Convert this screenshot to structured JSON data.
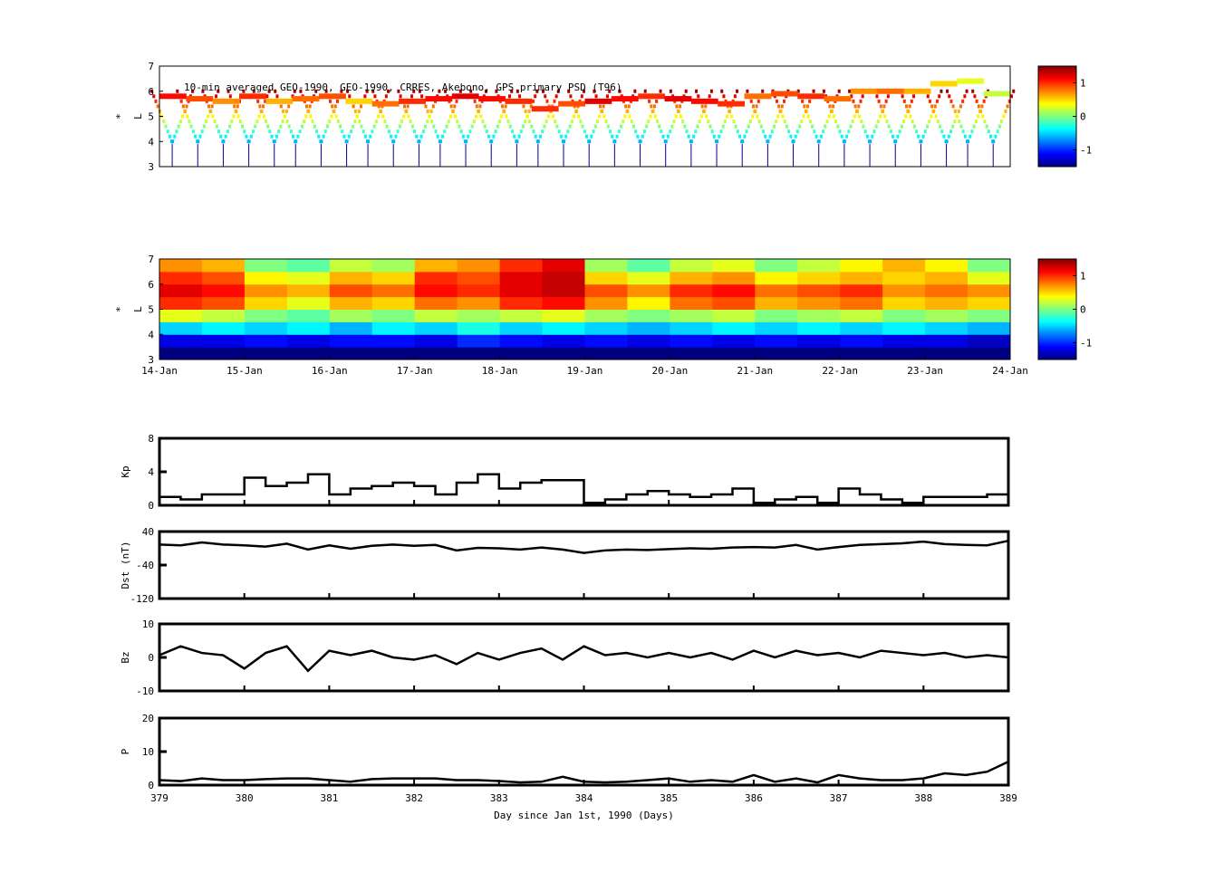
{
  "chart_data": [
    {
      "type": "scatter",
      "title": "10-min averaged GEO-1990, GEO-1990, CRRES, Akebono, GPS  primary PSD (T96)",
      "ylabel": "L*",
      "ylim": [
        3,
        7
      ],
      "yticks": [
        "3",
        "4",
        "5",
        "6",
        "7"
      ],
      "colorbar": {
        "range": [
          -1.5,
          1.5
        ],
        "ticks": [
          "1",
          "0",
          "-1"
        ]
      },
      "geo_L": [
        5.8,
        5.7,
        5.6,
        5.8,
        5.6,
        5.7,
        5.8,
        5.6,
        5.5,
        5.6,
        5.7,
        5.8,
        5.7,
        5.6,
        5.3,
        5.5,
        5.6,
        5.7,
        5.8,
        5.7,
        5.6,
        5.5,
        5.8,
        5.9,
        5.8,
        5.7,
        6.0,
        6.0,
        6.0,
        6.3,
        6.4,
        5.9
      ],
      "geo_value": [
        1.1,
        0.9,
        0.7,
        1.0,
        0.6,
        0.8,
        0.9,
        0.5,
        0.8,
        1.0,
        1.1,
        1.2,
        1.1,
        1.0,
        1.0,
        0.9,
        1.2,
        1.1,
        1.0,
        1.2,
        1.1,
        1.0,
        0.8,
        0.9,
        1.0,
        0.8,
        0.7,
        0.8,
        0.6,
        0.5,
        0.3,
        0.2
      ],
      "pass_days": [
        379.15,
        379.45,
        379.75,
        380.05,
        380.35,
        380.6,
        380.9,
        381.2,
        381.45,
        381.75,
        382.05,
        382.3,
        382.6,
        382.9,
        383.2,
        383.45,
        383.75,
        384.05,
        384.35,
        384.65,
        384.95,
        385.25,
        385.55,
        385.85,
        386.15,
        386.45,
        386.75,
        387.05,
        387.35,
        387.65,
        387.95,
        388.25,
        388.5,
        388.8
      ]
    },
    {
      "type": "heatmap",
      "ylabel": "L*",
      "ylim": [
        3,
        7
      ],
      "yticks": [
        "3",
        "4",
        "5",
        "6",
        "7"
      ],
      "xticks": [
        "14-Jan",
        "15-Jan",
        "16-Jan",
        "17-Jan",
        "18-Jan",
        "19-Jan",
        "20-Jan",
        "21-Jan",
        "22-Jan",
        "23-Jan",
        "24-Jan"
      ],
      "colorbar": {
        "range": [
          -1.5,
          1.5
        ],
        "ticks": [
          "1",
          "0",
          "-1"
        ]
      },
      "L_bins": [
        3.25,
        3.75,
        4.25,
        4.75,
        5.25,
        5.75,
        6.25,
        6.75
      ],
      "values": [
        [
          -1.6,
          -1.6,
          -1.6,
          -1.6,
          -1.6,
          -1.6,
          -1.6,
          -1.6,
          -1.6,
          -1.6,
          -1.6,
          -1.6,
          -1.6,
          -1.6,
          -1.6,
          -1.6,
          -1.6,
          -1.6,
          -1.6,
          -1.6
        ],
        [
          -1.2,
          -1.2,
          -1.1,
          -1.2,
          -1.1,
          -1.1,
          -1.2,
          -1.0,
          -1.1,
          -1.2,
          -1.1,
          -1.2,
          -1.1,
          -1.2,
          -1.1,
          -1.2,
          -1.1,
          -1.2,
          -1.2,
          -1.3
        ],
        [
          -0.5,
          -0.4,
          -0.5,
          -0.4,
          -0.6,
          -0.4,
          -0.5,
          -0.3,
          -0.5,
          -0.4,
          -0.5,
          -0.6,
          -0.5,
          -0.4,
          -0.5,
          -0.4,
          -0.5,
          -0.4,
          -0.5,
          -0.6
        ],
        [
          0.3,
          0.2,
          0.0,
          -0.1,
          0.1,
          0.0,
          0.2,
          0.1,
          0.2,
          0.3,
          0.1,
          0.0,
          0.1,
          0.2,
          0.0,
          0.1,
          0.2,
          0.0,
          0.1,
          0.0
        ],
        [
          1.0,
          0.9,
          0.5,
          0.3,
          0.6,
          0.5,
          0.8,
          0.7,
          1.0,
          1.1,
          0.7,
          0.4,
          0.8,
          0.9,
          0.6,
          0.7,
          0.8,
          0.5,
          0.6,
          0.5
        ],
        [
          1.2,
          1.1,
          0.7,
          0.6,
          0.9,
          0.8,
          1.1,
          1.0,
          1.2,
          1.3,
          0.9,
          0.7,
          1.0,
          1.1,
          0.8,
          0.9,
          1.0,
          0.7,
          0.8,
          0.7
        ],
        [
          1.0,
          0.9,
          0.4,
          0.3,
          0.6,
          0.5,
          1.0,
          0.9,
          1.2,
          1.3,
          0.5,
          0.3,
          0.6,
          0.7,
          0.4,
          0.5,
          0.6,
          0.5,
          0.6,
          0.3
        ],
        [
          0.7,
          0.6,
          0.0,
          -0.1,
          0.2,
          0.1,
          0.6,
          0.7,
          1.0,
          1.2,
          0.1,
          -0.1,
          0.2,
          0.3,
          0.0,
          0.2,
          0.4,
          0.6,
          0.4,
          0.0
        ]
      ]
    },
    {
      "type": "line",
      "ylabel": "Kp",
      "ylim": [
        0,
        8
      ],
      "yticks": [
        "0",
        "4",
        "8"
      ],
      "x": [
        379,
        379.25,
        379.5,
        379.75,
        380,
        380.25,
        380.5,
        380.75,
        381,
        381.25,
        381.5,
        381.75,
        382,
        382.25,
        382.5,
        382.75,
        383,
        383.25,
        383.5,
        383.75,
        384,
        384.25,
        384.5,
        384.75,
        385,
        385.25,
        385.5,
        385.75,
        386,
        386.25,
        386.5,
        386.75,
        387,
        387.25,
        387.5,
        387.75,
        388,
        388.25,
        388.5,
        388.75,
        389
      ],
      "values": [
        1,
        0.7,
        1.3,
        1.3,
        3.3,
        2.3,
        2.7,
        3.7,
        1.3,
        2,
        2.3,
        2.7,
        2.3,
        1.3,
        2.7,
        3.7,
        2,
        2.7,
        3,
        3,
        0.3,
        0.7,
        1.3,
        1.7,
        1.3,
        1,
        1.3,
        2,
        0.3,
        0.7,
        1,
        0.3,
        2,
        1.3,
        0.7,
        0.3,
        1,
        1,
        1,
        1.3,
        4
      ]
    },
    {
      "type": "line",
      "ylabel": "Dst (nT)",
      "ylim": [
        -120,
        40
      ],
      "yticks": [
        "-120",
        "-40",
        "40"
      ],
      "x": [
        379,
        379.25,
        379.5,
        379.75,
        380,
        380.25,
        380.5,
        380.75,
        381,
        381.25,
        381.5,
        381.75,
        382,
        382.25,
        382.5,
        382.75,
        383,
        383.25,
        383.5,
        383.75,
        384,
        384.25,
        384.5,
        384.75,
        385,
        385.25,
        385.5,
        385.75,
        386,
        386.25,
        386.5,
        386.75,
        387,
        387.25,
        387.5,
        387.75,
        388,
        388.25,
        388.5,
        388.75,
        389
      ],
      "values": [
        9,
        7,
        14,
        9,
        7,
        4,
        11,
        -3,
        7,
        -1,
        6,
        9,
        6,
        8,
        -5,
        1,
        0,
        -3,
        2,
        -3,
        -11,
        -5,
        -3,
        -4,
        -2,
        0,
        -1,
        2,
        3,
        2,
        8,
        -3,
        3,
        8,
        10,
        12,
        16,
        10,
        8,
        7,
        18
      ]
    },
    {
      "type": "line",
      "ylabel": "Bz",
      "ylim": [
        -15,
        15
      ],
      "yticks": [
        "-10",
        "0",
        "10"
      ],
      "x": [
        379,
        379.25,
        379.5,
        379.75,
        380,
        380.25,
        380.5,
        380.75,
        381,
        381.25,
        381.5,
        381.75,
        382,
        382.25,
        382.5,
        382.75,
        383,
        383.25,
        383.5,
        383.75,
        384,
        384.25,
        384.5,
        384.75,
        385,
        385.25,
        385.5,
        385.75,
        386,
        386.25,
        386.5,
        386.75,
        387,
        387.25,
        387.5,
        387.75,
        388,
        388.25,
        388.5,
        388.75,
        389
      ],
      "values": [
        1,
        5,
        2,
        1,
        -5,
        2,
        5,
        -6,
        3,
        1,
        3,
        0,
        -1,
        1,
        -3,
        2,
        -1,
        2,
        4,
        -1,
        5,
        1,
        2,
        0,
        2,
        0,
        2,
        -1,
        3,
        0,
        3,
        1,
        2,
        0,
        3,
        2,
        1,
        2,
        0,
        1,
        0
      ]
    },
    {
      "type": "line",
      "ylabel": "P",
      "xlabel": "Day since Jan 1st, 1990 (Days)",
      "ylim": [
        0,
        20
      ],
      "yticks": [
        "0",
        "10",
        "20"
      ],
      "xticks": [
        "379",
        "380",
        "381",
        "382",
        "383",
        "384",
        "385",
        "386",
        "387",
        "388",
        "389"
      ],
      "x": [
        379,
        379.25,
        379.5,
        379.75,
        380,
        380.25,
        380.5,
        380.75,
        381,
        381.25,
        381.5,
        381.75,
        382,
        382.25,
        382.5,
        382.75,
        383,
        383.25,
        383.5,
        383.75,
        384,
        384.25,
        384.5,
        384.75,
        385,
        385.25,
        385.5,
        385.75,
        386,
        386.25,
        386.5,
        386.75,
        387,
        387.25,
        387.5,
        387.75,
        388,
        388.25,
        388.5,
        388.75,
        389
      ],
      "values": [
        1.5,
        1.2,
        2,
        1.5,
        1.5,
        1.8,
        2,
        2,
        1.5,
        1,
        1.8,
        2,
        2,
        2,
        1.5,
        1.5,
        1.2,
        0.8,
        1,
        2.5,
        1,
        0.8,
        1,
        1.5,
        2,
        1,
        1.5,
        1,
        3,
        1,
        2,
        0.8,
        3,
        2,
        1.5,
        1.5,
        2,
        3.5,
        3,
        4,
        7
      ]
    }
  ]
}
